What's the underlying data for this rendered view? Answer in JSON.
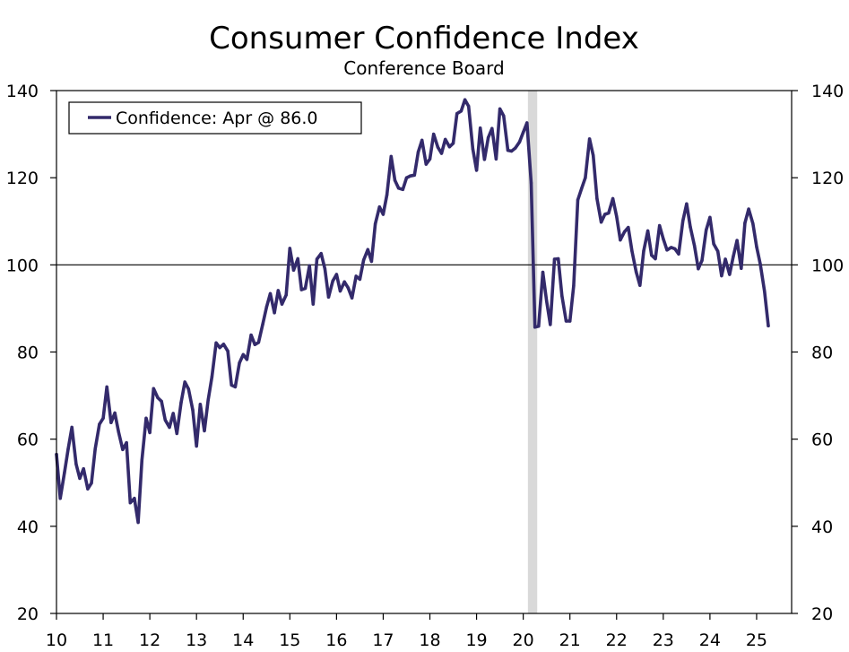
{
  "chart_data": {
    "type": "line",
    "title": "Consumer Confidence Index",
    "subtitle": "Conference Board",
    "xlabel": "",
    "ylabel": "",
    "ylim": [
      20,
      140
    ],
    "yticks": [
      "140",
      "120",
      "100",
      "80",
      "60",
      "40",
      "20"
    ],
    "xlim": [
      2010.0,
      2025.75
    ],
    "xticks": [
      "10",
      "11",
      "12",
      "13",
      "14",
      "15",
      "16",
      "17",
      "18",
      "19",
      "20",
      "21",
      "22",
      "23",
      "24",
      "25"
    ],
    "reference_line": 100,
    "recession": {
      "start": 2020.1,
      "end": 2020.3
    },
    "legend": {
      "label": "Confidence: Apr @ 86.0",
      "placement": "top-left"
    },
    "series": [
      {
        "name": "Confidence",
        "color": "#332a6b",
        "x": [
          2010.0,
          2010.08,
          2010.17,
          2010.25,
          2010.33,
          2010.42,
          2010.5,
          2010.58,
          2010.67,
          2010.75,
          2010.83,
          2010.92,
          2011.0,
          2011.08,
          2011.17,
          2011.25,
          2011.33,
          2011.42,
          2011.5,
          2011.58,
          2011.67,
          2011.75,
          2011.83,
          2011.92,
          2012.0,
          2012.08,
          2012.17,
          2012.25,
          2012.33,
          2012.42,
          2012.5,
          2012.58,
          2012.67,
          2012.75,
          2012.83,
          2012.92,
          2013.0,
          2013.08,
          2013.17,
          2013.25,
          2013.33,
          2013.42,
          2013.5,
          2013.58,
          2013.67,
          2013.75,
          2013.83,
          2013.92,
          2014.0,
          2014.08,
          2014.17,
          2014.25,
          2014.33,
          2014.42,
          2014.5,
          2014.58,
          2014.67,
          2014.75,
          2014.83,
          2014.92,
          2015.0,
          2015.08,
          2015.17,
          2015.25,
          2015.33,
          2015.42,
          2015.5,
          2015.58,
          2015.67,
          2015.75,
          2015.83,
          2015.92,
          2016.0,
          2016.08,
          2016.17,
          2016.25,
          2016.33,
          2016.42,
          2016.5,
          2016.58,
          2016.67,
          2016.75,
          2016.83,
          2016.92,
          2017.0,
          2017.08,
          2017.17,
          2017.25,
          2017.33,
          2017.42,
          2017.5,
          2017.58,
          2017.67,
          2017.75,
          2017.83,
          2017.92,
          2018.0,
          2018.08,
          2018.17,
          2018.25,
          2018.33,
          2018.42,
          2018.5,
          2018.58,
          2018.67,
          2018.75,
          2018.83,
          2018.92,
          2019.0,
          2019.08,
          2019.17,
          2019.25,
          2019.33,
          2019.42,
          2019.5,
          2019.58,
          2019.67,
          2019.75,
          2019.83,
          2019.92,
          2020.0,
          2020.08,
          2020.17,
          2020.25,
          2020.33,
          2020.42,
          2020.5,
          2020.58,
          2020.67,
          2020.75,
          2020.83,
          2020.92,
          2021.0,
          2021.08,
          2021.17,
          2021.25,
          2021.33,
          2021.42,
          2021.5,
          2021.58,
          2021.67,
          2021.75,
          2021.83,
          2021.92,
          2022.0,
          2022.08,
          2022.17,
          2022.25,
          2022.33,
          2022.42,
          2022.5,
          2022.58,
          2022.67,
          2022.75,
          2022.83,
          2022.92,
          2023.0,
          2023.08,
          2023.17,
          2023.25,
          2023.33,
          2023.42,
          2023.5,
          2023.58,
          2023.67,
          2023.75,
          2023.83,
          2023.92,
          2024.0,
          2024.08,
          2024.17,
          2024.25,
          2024.33,
          2024.42,
          2024.5,
          2024.58,
          2024.67,
          2024.75,
          2024.83,
          2024.92,
          2025.0,
          2025.08,
          2025.17,
          2025.25
        ],
        "values": [
          56.5,
          46.4,
          52.3,
          57.7,
          62.7,
          54.3,
          51.0,
          53.2,
          48.6,
          49.9,
          57.8,
          63.4,
          64.8,
          72.0,
          63.8,
          66.0,
          61.7,
          57.6,
          59.2,
          45.4,
          46.4,
          40.9,
          55.2,
          64.8,
          61.5,
          71.6,
          69.5,
          68.7,
          64.4,
          62.7,
          65.9,
          61.3,
          68.4,
          73.1,
          71.5,
          66.7,
          58.4,
          68.0,
          61.9,
          69.0,
          74.3,
          82.1,
          81.0,
          81.8,
          80.2,
          72.4,
          72.0,
          77.5,
          79.4,
          78.3,
          83.9,
          81.7,
          82.2,
          86.4,
          90.3,
          93.4,
          89.0,
          94.1,
          91.0,
          93.1,
          103.8,
          98.8,
          101.4,
          94.3,
          94.6,
          99.8,
          91.0,
          101.3,
          102.6,
          99.1,
          92.6,
          96.3,
          97.8,
          94.0,
          96.1,
          94.7,
          92.4,
          97.4,
          96.7,
          101.1,
          103.5,
          100.8,
          109.4,
          113.3,
          111.6,
          116.1,
          124.9,
          119.4,
          117.6,
          117.3,
          120.0,
          120.4,
          120.6,
          125.9,
          128.6,
          123.1,
          124.3,
          130.0,
          127.0,
          125.6,
          128.8,
          127.1,
          127.9,
          134.7,
          135.3,
          137.9,
          136.4,
          126.6,
          121.7,
          131.4,
          124.2,
          129.2,
          131.3,
          124.3,
          135.8,
          134.2,
          126.3,
          126.1,
          126.8,
          128.2,
          130.4,
          132.6,
          118.8,
          85.7,
          85.9,
          98.3,
          91.7,
          86.3,
          101.3,
          101.4,
          92.9,
          87.1,
          87.1,
          95.2,
          114.9,
          117.5,
          120.0,
          128.9,
          125.1,
          115.2,
          109.8,
          111.6,
          111.9,
          115.2,
          111.1,
          105.7,
          107.6,
          108.6,
          103.2,
          98.4,
          95.3,
          103.2,
          107.8,
          102.2,
          101.4,
          109.0,
          106.0,
          103.4,
          104.0,
          103.7,
          102.5,
          110.1,
          114.0,
          108.7,
          104.3,
          99.1,
          101.0,
          108.0,
          110.9,
          104.8,
          103.1,
          97.5,
          101.3,
          97.8,
          101.9,
          105.6,
          99.2,
          109.6,
          112.8,
          109.5,
          104.1,
          100.1,
          93.9,
          86.0
        ]
      }
    ]
  }
}
